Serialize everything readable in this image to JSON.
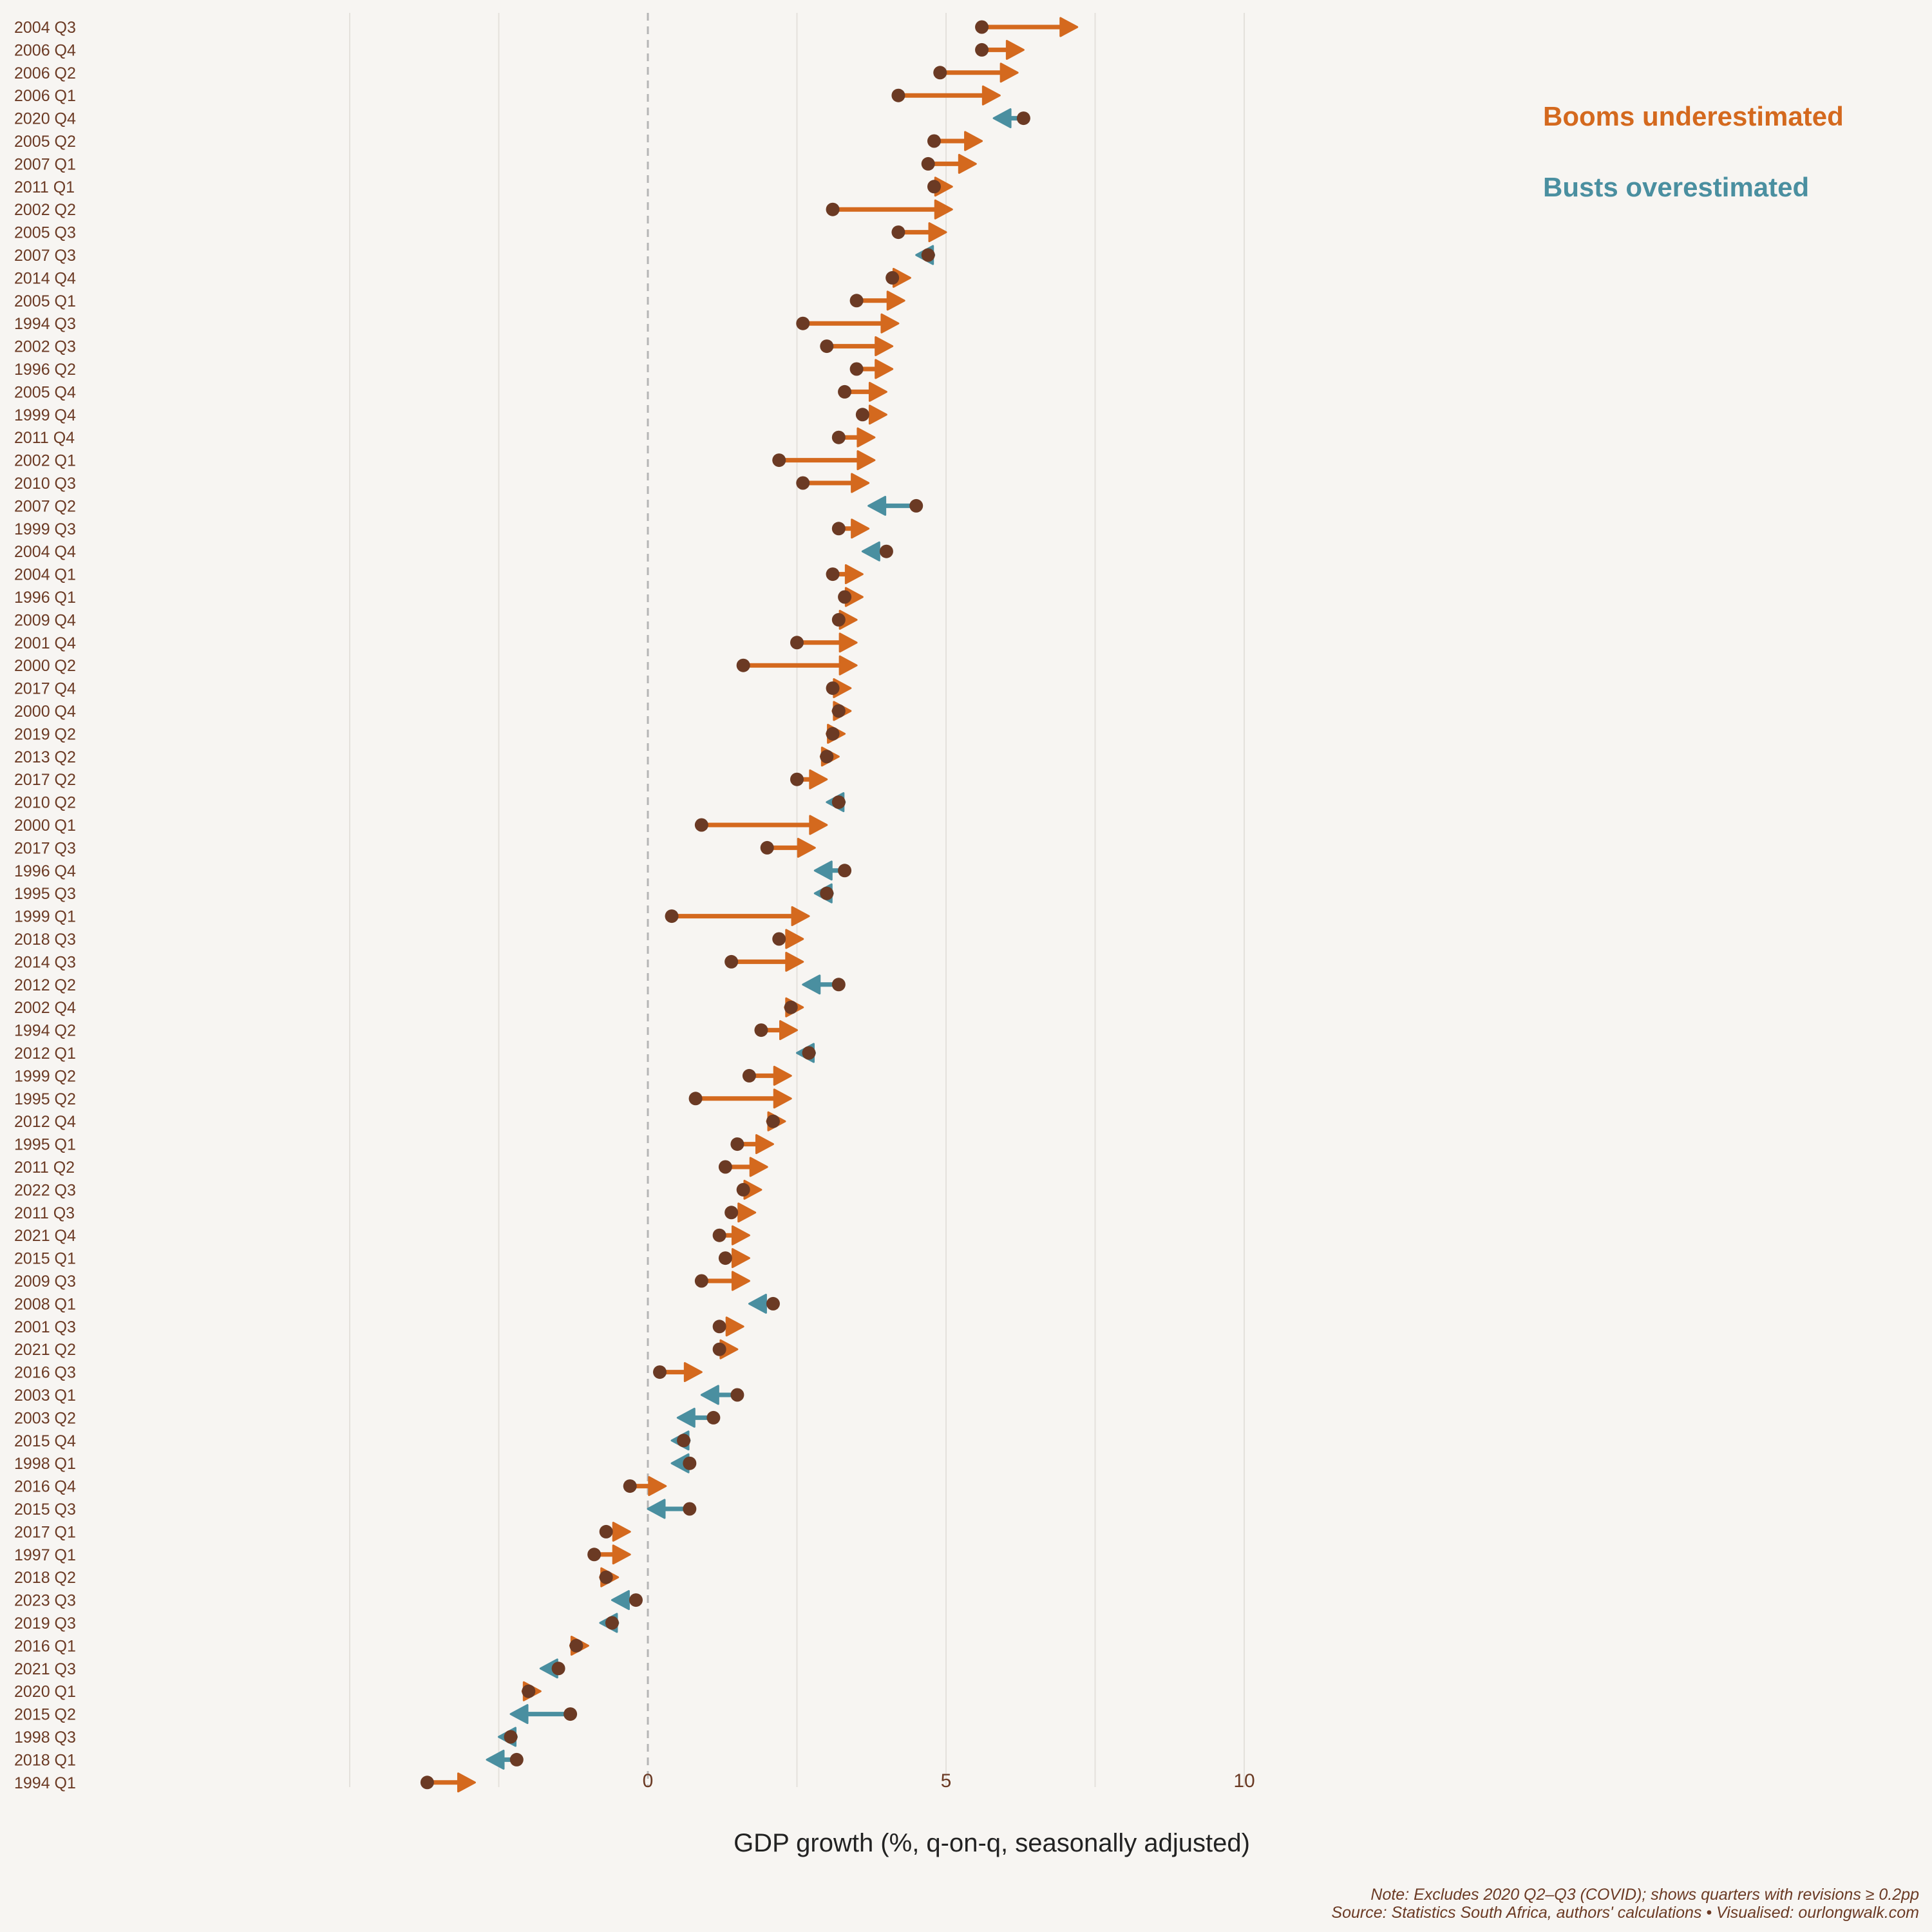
{
  "chart_data": {
    "type": "dumbbell-arrow",
    "xlabel": "GDP growth (%, q-on-q, seasonally adjusted)",
    "xlim": [
      -3.7,
      10.5
    ],
    "xticks": [
      0,
      5,
      10
    ],
    "reference_line": 0,
    "legend": [
      {
        "key": "boom",
        "label": "Booms underestimated",
        "color": "#d4691e"
      },
      {
        "key": "bust",
        "label": "Busts overestimated",
        "color": "#4a8fa0"
      }
    ],
    "point_color": "#6b3a24",
    "series_fields": [
      "quarter",
      "initial",
      "revised"
    ],
    "rows": [
      [
        "2004 Q3",
        5.6,
        7.2
      ],
      [
        "2006 Q4",
        5.6,
        6.3
      ],
      [
        "2006 Q2",
        4.9,
        6.2
      ],
      [
        "2006 Q1",
        4.2,
        5.9
      ],
      [
        "2020 Q4",
        6.3,
        5.8
      ],
      [
        "2005 Q2",
        4.8,
        5.6
      ],
      [
        "2007 Q1",
        4.7,
        5.5
      ],
      [
        "2011 Q1",
        4.8,
        5.1
      ],
      [
        "2002 Q2",
        3.1,
        5.1
      ],
      [
        "2005 Q3",
        4.2,
        5.0
      ],
      [
        "2007 Q3",
        4.7,
        4.5
      ],
      [
        "2014 Q4",
        4.1,
        4.4
      ],
      [
        "2005 Q1",
        3.5,
        4.3
      ],
      [
        "1994 Q3",
        2.6,
        4.2
      ],
      [
        "2002 Q3",
        3.0,
        4.1
      ],
      [
        "1996 Q2",
        3.5,
        4.1
      ],
      [
        "2005 Q4",
        3.3,
        4.0
      ],
      [
        "1999 Q4",
        3.6,
        4.0
      ],
      [
        "2011 Q4",
        3.2,
        3.8
      ],
      [
        "2002 Q1",
        2.2,
        3.8
      ],
      [
        "2010 Q3",
        2.6,
        3.7
      ],
      [
        "2007 Q2",
        4.5,
        3.7
      ],
      [
        "1999 Q3",
        3.2,
        3.7
      ],
      [
        "2004 Q4",
        4.0,
        3.6
      ],
      [
        "2004 Q1",
        3.1,
        3.6
      ],
      [
        "1996 Q1",
        3.3,
        3.6
      ],
      [
        "2009 Q4",
        3.2,
        3.5
      ],
      [
        "2001 Q4",
        2.5,
        3.5
      ],
      [
        "2000 Q2",
        1.6,
        3.5
      ],
      [
        "2017 Q4",
        3.1,
        3.4
      ],
      [
        "2000 Q4",
        3.2,
        3.4
      ],
      [
        "2019 Q2",
        3.1,
        3.3
      ],
      [
        "2013 Q2",
        3.0,
        3.2
      ],
      [
        "2017 Q2",
        2.5,
        3.0
      ],
      [
        "2010 Q2",
        3.2,
        3.0
      ],
      [
        "2000 Q1",
        0.9,
        3.0
      ],
      [
        "2017 Q3",
        2.0,
        2.8
      ],
      [
        "1996 Q4",
        3.3,
        2.8
      ],
      [
        "1995 Q3",
        3.0,
        2.8
      ],
      [
        "1999 Q1",
        0.4,
        2.7
      ],
      [
        "2018 Q3",
        2.2,
        2.6
      ],
      [
        "2014 Q3",
        1.4,
        2.6
      ],
      [
        "2012 Q2",
        3.2,
        2.6
      ],
      [
        "2002 Q4",
        2.4,
        2.6
      ],
      [
        "1994 Q2",
        1.9,
        2.5
      ],
      [
        "2012 Q1",
        2.7,
        2.5
      ],
      [
        "1999 Q2",
        1.7,
        2.4
      ],
      [
        "1995 Q2",
        0.8,
        2.4
      ],
      [
        "2012 Q4",
        2.1,
        2.3
      ],
      [
        "1995 Q1",
        1.5,
        2.1
      ],
      [
        "2011 Q2",
        1.3,
        2.0
      ],
      [
        "2022 Q3",
        1.6,
        1.9
      ],
      [
        "2011 Q3",
        1.4,
        1.8
      ],
      [
        "2021 Q4",
        1.2,
        1.7
      ],
      [
        "2015 Q1",
        1.3,
        1.7
      ],
      [
        "2009 Q3",
        0.9,
        1.7
      ],
      [
        "2008 Q1",
        2.1,
        1.7
      ],
      [
        "2001 Q3",
        1.2,
        1.6
      ],
      [
        "2021 Q2",
        1.2,
        1.5
      ],
      [
        "2016 Q3",
        0.2,
        0.9
      ],
      [
        "2003 Q1",
        1.5,
        0.9
      ],
      [
        "2003 Q2",
        1.1,
        0.5
      ],
      [
        "2015 Q4",
        0.6,
        0.4
      ],
      [
        "1998 Q1",
        0.7,
        0.4
      ],
      [
        "2016 Q4",
        -0.3,
        0.3
      ],
      [
        "2015 Q3",
        0.7,
        0.0
      ],
      [
        "2017 Q1",
        -0.7,
        -0.3
      ],
      [
        "1997 Q1",
        -0.9,
        -0.3
      ],
      [
        "2018 Q2",
        -0.7,
        -0.5
      ],
      [
        "2023 Q3",
        -0.2,
        -0.6
      ],
      [
        "2019 Q3",
        -0.6,
        -0.8
      ],
      [
        "2016 Q1",
        -1.2,
        -1.0
      ],
      [
        "2021 Q3",
        -1.5,
        -1.8
      ],
      [
        "2020 Q1",
        -2.0,
        -1.8
      ],
      [
        "2015 Q2",
        -1.3,
        -2.3
      ],
      [
        "1998 Q3",
        -2.3,
        -2.5
      ],
      [
        "2018 Q1",
        -2.2,
        -2.7
      ],
      [
        "1994 Q1",
        -3.7,
        -2.9
      ]
    ]
  },
  "footer": {
    "note": "Note: Excludes 2020 Q2–Q3 (COVID); shows quarters with revisions ≥ 0.2pp",
    "source": "Source: Statistics South Africa, authors' calculations • Visualised: ourlongwalk.com"
  }
}
